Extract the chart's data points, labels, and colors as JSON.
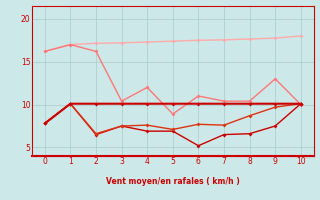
{
  "x": [
    0,
    1,
    2,
    3,
    4,
    5,
    6,
    7,
    8,
    9,
    10
  ],
  "line_lightpink": [
    16.2,
    17.0,
    17.15,
    17.2,
    17.3,
    17.4,
    17.5,
    17.55,
    17.65,
    17.75,
    18.0
  ],
  "line_pink": [
    16.2,
    17.0,
    16.2,
    10.4,
    12.0,
    8.9,
    11.0,
    10.4,
    10.4,
    13.0,
    10.0
  ],
  "line_red_flat": [
    7.8,
    10.1,
    10.1,
    10.1,
    10.1,
    10.1,
    10.1,
    10.1,
    10.1,
    10.1,
    10.1
  ],
  "line_red_low": [
    7.8,
    10.1,
    6.5,
    7.5,
    6.9,
    6.9,
    5.2,
    6.5,
    6.6,
    7.5,
    10.1
  ],
  "line_red_rise": [
    7.8,
    10.1,
    6.6,
    7.5,
    7.6,
    7.1,
    7.7,
    7.6,
    8.7,
    9.7,
    10.1
  ],
  "color_lightpink": "#ffaaaa",
  "color_pink": "#ff7777",
  "color_red_flat": "#cc0000",
  "color_red_low": "#cc0000",
  "color_red_rise": "#dd3311",
  "bg_color": "#cce8e8",
  "grid_color": "#aacccc",
  "axis_color": "#cc0000",
  "xlabel": "Vent moyen/en rafales ( km/h )",
  "ylim": [
    4.0,
    21.5
  ],
  "xlim": [
    -0.5,
    10.5
  ],
  "yticks": [
    5,
    10,
    15,
    20
  ],
  "xticks": [
    0,
    1,
    2,
    3,
    4,
    5,
    6,
    7,
    8,
    9,
    10
  ]
}
